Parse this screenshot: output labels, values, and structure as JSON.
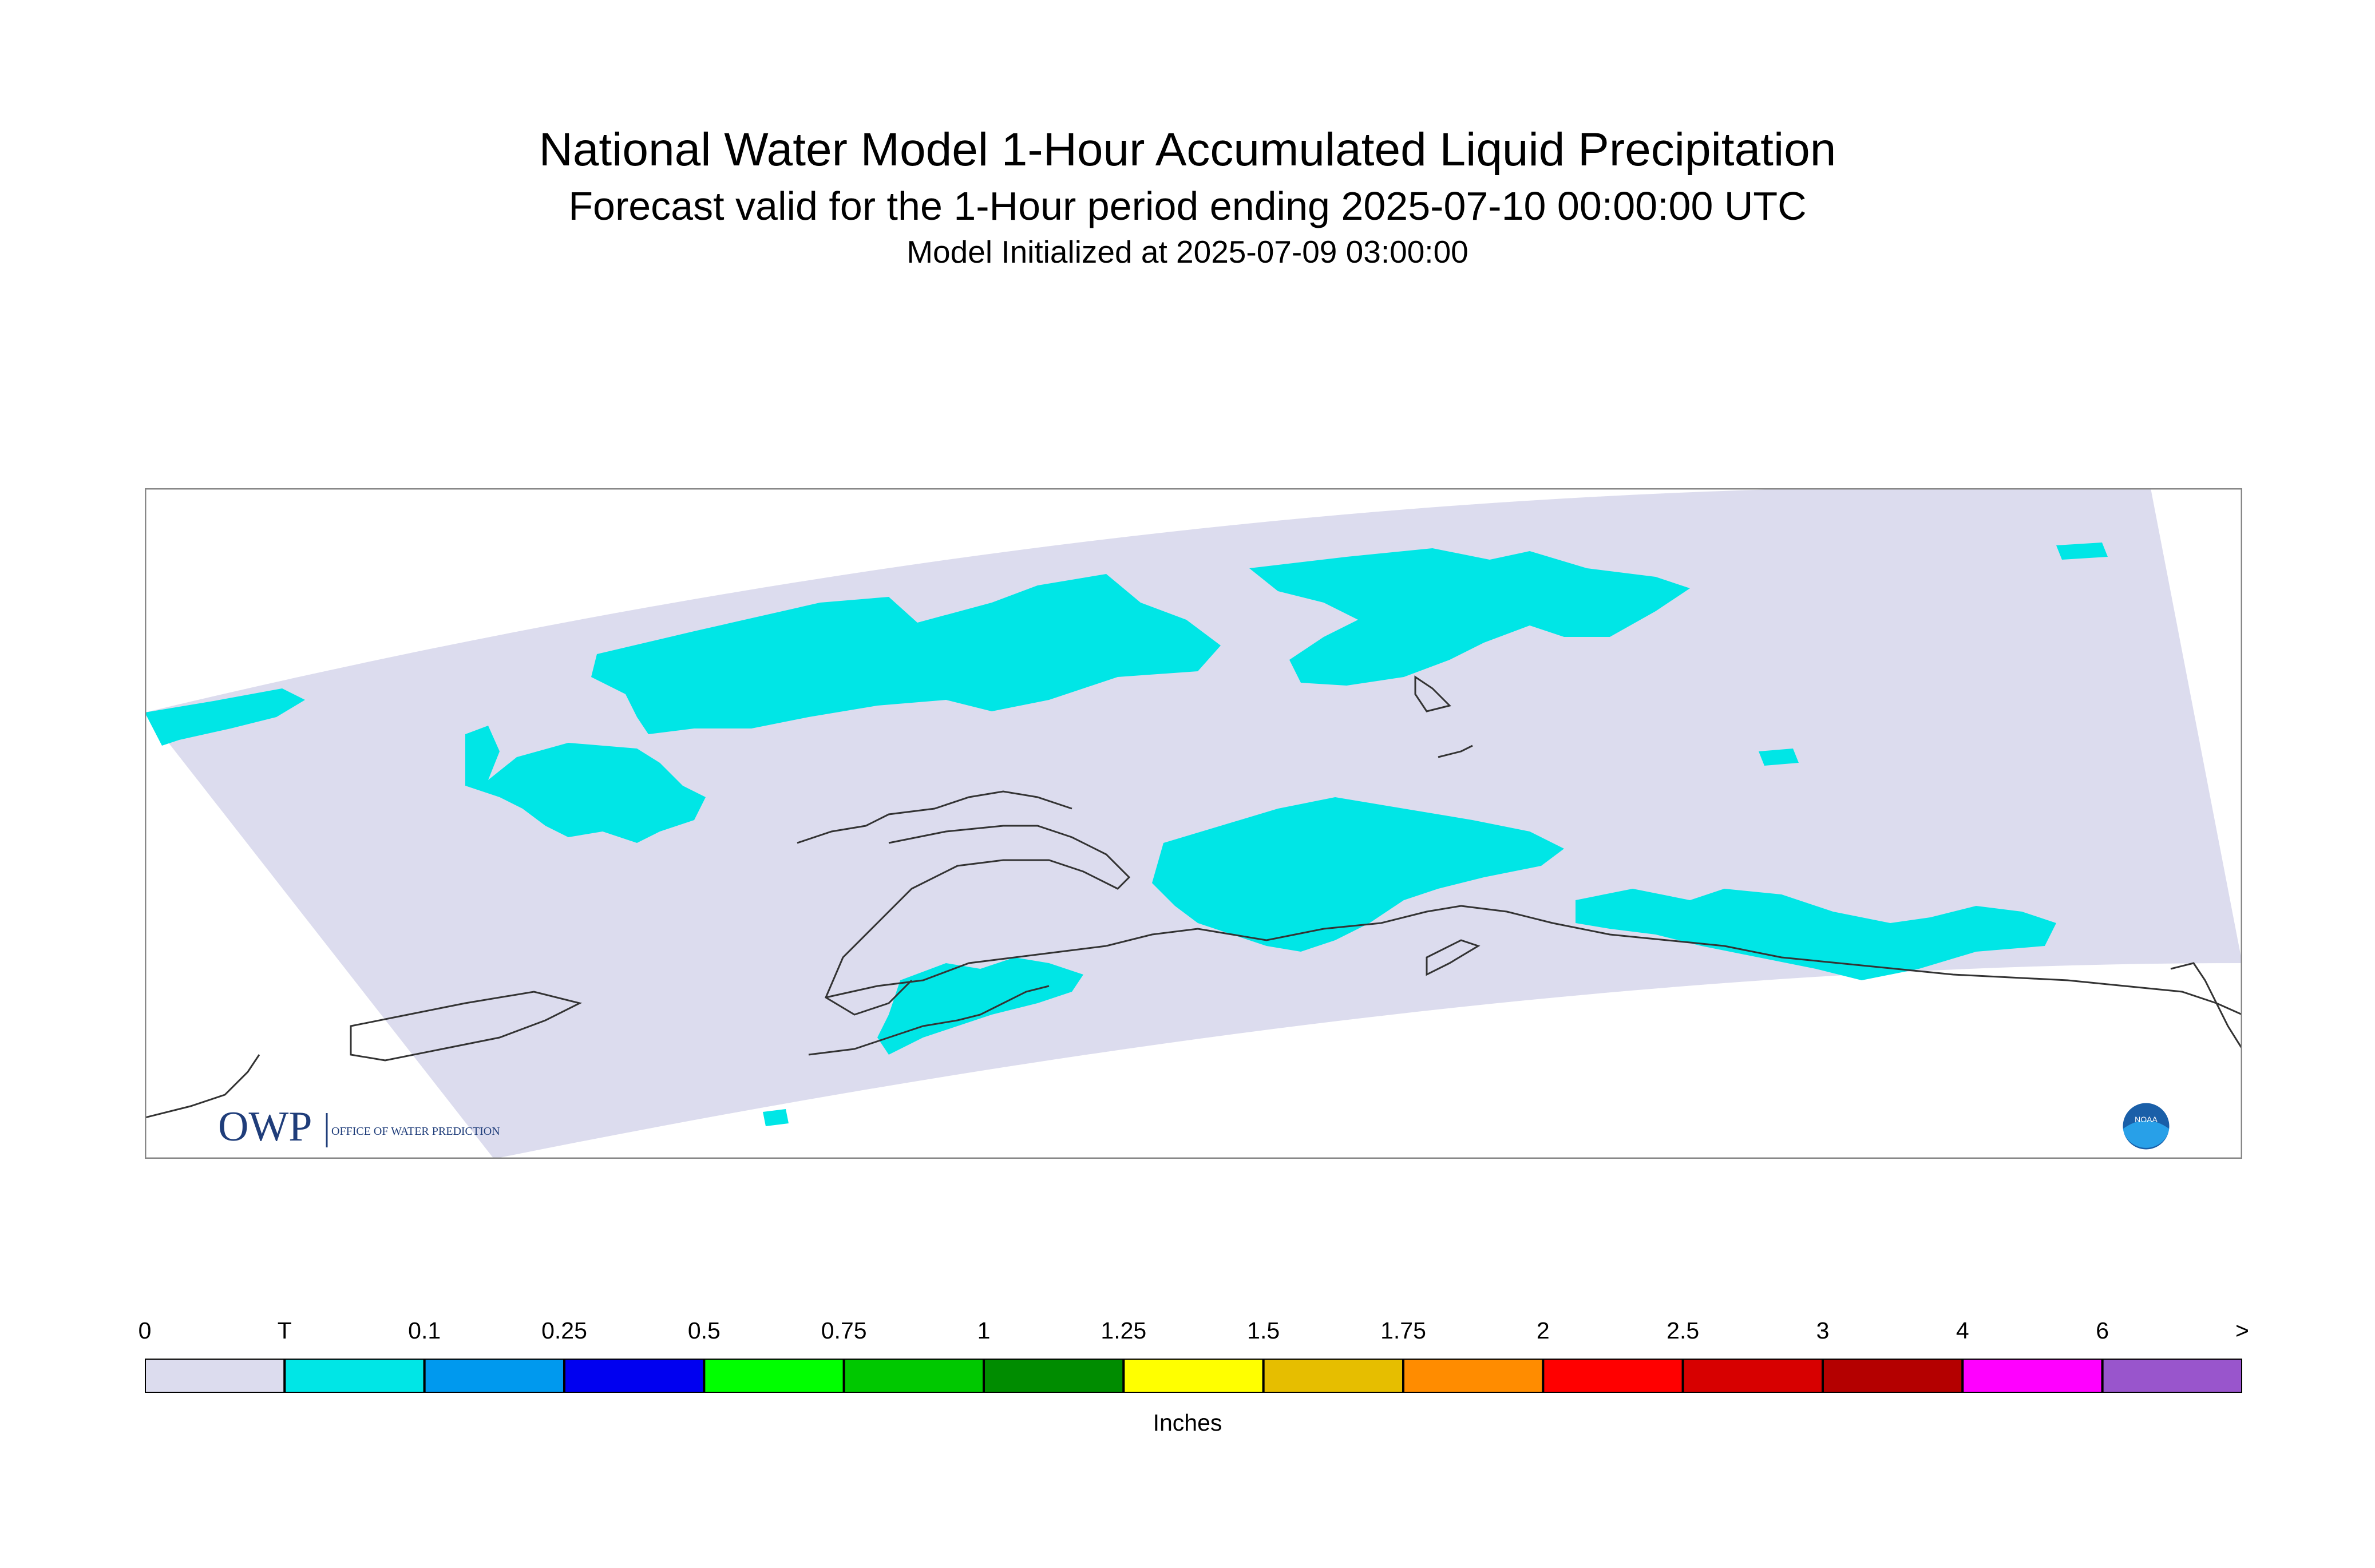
{
  "header": {
    "title": "National Water Model 1-Hour Accumulated Liquid Precipitation",
    "subtitle": "Forecast valid for the 1-Hour period ending 2025-07-10 00:00:00 UTC",
    "init_line": "Model Initialized at 2025-07-09 03:00:00"
  },
  "logos": {
    "owp_letters": "OWP",
    "owp_text": "OFFICE OF WATER PREDICTION",
    "noaa_text": "NOAA"
  },
  "colors": {
    "domain_fill": "#dcdcee",
    "precip_trace": "#00e6e6",
    "coastline": "#333333",
    "frame": "#888888"
  },
  "legend": {
    "unit_label": "Inches",
    "tick_labels": [
      "0",
      "T",
      "0.1",
      "0.25",
      "0.5",
      "0.75",
      "1",
      "1.25",
      "1.5",
      "1.75",
      "2",
      "2.5",
      "3",
      "4",
      "6",
      ">"
    ],
    "bins": [
      {
        "color": "#dcdcee"
      },
      {
        "color": "#00e6e6"
      },
      {
        "color": "#0099ee"
      },
      {
        "color": "#0000f0"
      },
      {
        "color": "#00ff00"
      },
      {
        "color": "#00c800"
      },
      {
        "color": "#008c00"
      },
      {
        "color": "#ffff00"
      },
      {
        "color": "#e6be00"
      },
      {
        "color": "#ff8c00"
      },
      {
        "color": "#ff0000"
      },
      {
        "color": "#d70000"
      },
      {
        "color": "#b40000"
      },
      {
        "color": "#ff00ff"
      },
      {
        "color": "#9955cc"
      }
    ]
  }
}
